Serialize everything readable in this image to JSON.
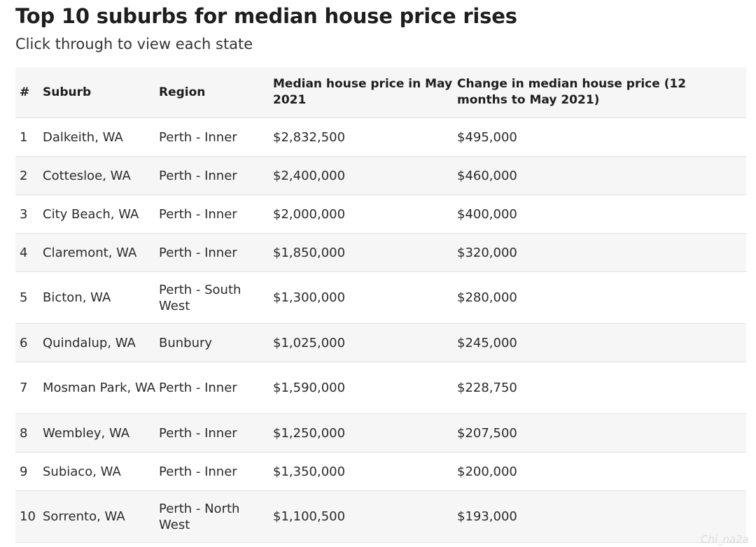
{
  "header": {
    "title": "Top 10 suburbs for median house price rises",
    "subtitle": "Click through to view each state"
  },
  "table": {
    "columns": [
      "#",
      "Suburb",
      "Region",
      "Median house price in May 2021",
      "Change in median house price (12 months to May 2021)"
    ],
    "rows": [
      {
        "rank": "1",
        "suburb": "Dalkeith, WA",
        "region": "Perth - Inner",
        "median": "$2,832,500",
        "change": "$495,000"
      },
      {
        "rank": "2",
        "suburb": "Cottesloe, WA",
        "region": "Perth - Inner",
        "median": "$2,400,000",
        "change": "$460,000"
      },
      {
        "rank": "3",
        "suburb": "City Beach, WA",
        "region": "Perth - Inner",
        "median": "$2,000,000",
        "change": "$400,000"
      },
      {
        "rank": "4",
        "suburb": "Claremont, WA",
        "region": "Perth - Inner",
        "median": "$1,850,000",
        "change": "$320,000"
      },
      {
        "rank": "5",
        "suburb": "Bicton, WA",
        "region": "Perth - South West",
        "median": "$1,300,000",
        "change": "$280,000"
      },
      {
        "rank": "6",
        "suburb": "Quindalup, WA",
        "region": "Bunbury",
        "median": "$1,025,000",
        "change": "$245,000"
      },
      {
        "rank": "7",
        "suburb": "Mosman Park, WA",
        "region": "Perth - Inner",
        "median": "$1,590,000",
        "change": "$228,750"
      },
      {
        "rank": "8",
        "suburb": "Wembley, WA",
        "region": "Perth - Inner",
        "median": "$1,250,000",
        "change": "$207,500"
      },
      {
        "rank": "9",
        "suburb": "Subiaco, WA",
        "region": "Perth - Inner",
        "median": "$1,350,000",
        "change": "$200,000"
      },
      {
        "rank": "10",
        "suburb": "Sorrento, WA",
        "region": "Perth - North West",
        "median": "$1,100,500",
        "change": "$193,000"
      }
    ]
  },
  "watermark": "Chi_na2a"
}
